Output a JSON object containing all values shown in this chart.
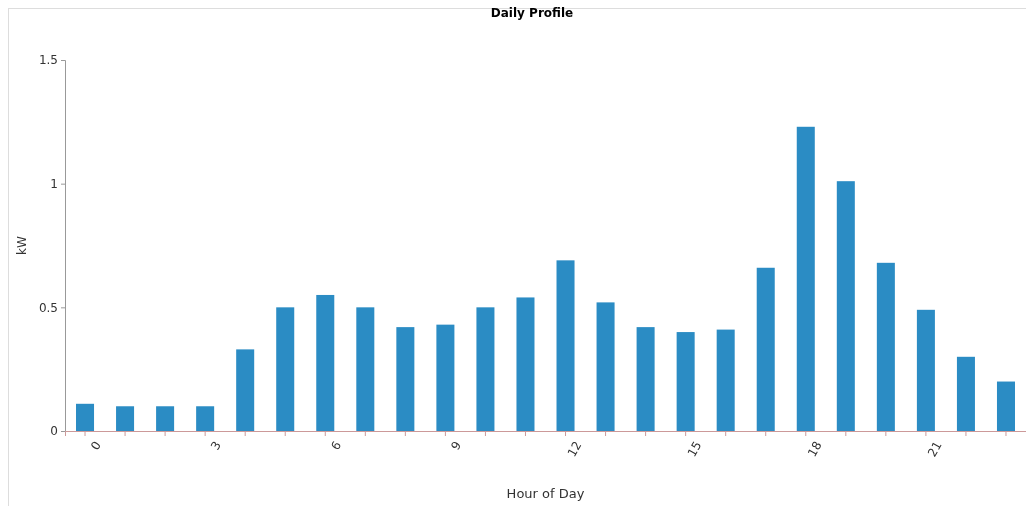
{
  "chart_data": {
    "type": "bar",
    "title": "Daily Profile",
    "xlabel": "Hour of Day",
    "ylabel": "kW",
    "categories": [
      "0",
      null,
      null,
      "3",
      null,
      null,
      "6",
      null,
      null,
      "9",
      null,
      null,
      "12",
      null,
      null,
      "15",
      null,
      null,
      "18",
      null,
      null,
      "21",
      null,
      null
    ],
    "values": [
      0.11,
      0.1,
      0.1,
      0.1,
      0.33,
      0.5,
      0.55,
      0.5,
      0.42,
      0.43,
      0.5,
      0.54,
      0.69,
      0.52,
      0.42,
      0.4,
      0.41,
      0.66,
      1.23,
      1.01,
      0.68,
      0.49,
      0.3,
      0.2
    ],
    "color": "#2b8cc4",
    "ylim": [
      0,
      1.5
    ],
    "yticks": [
      0,
      0.5,
      1,
      1.5
    ],
    "grid": false
  }
}
